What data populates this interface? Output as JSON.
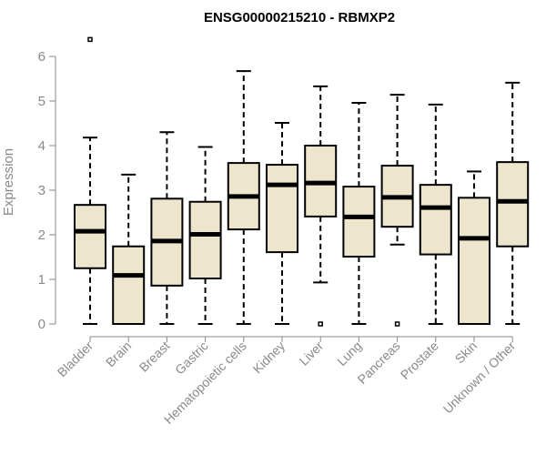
{
  "chart_data": {
    "type": "boxplot",
    "title": "ENSG00000215210 - RBMXP2",
    "xlabel": "",
    "ylabel": "Expression",
    "ylim": [
      0,
      6
    ],
    "yticks": [
      0,
      1,
      2,
      3,
      4,
      5,
      6
    ],
    "colors": {
      "box_fill": "#ede6cc",
      "stroke": "#000000",
      "axis": "#8a8a8a",
      "title": "#000000"
    },
    "categories": [
      "Bladder",
      "Brain",
      "Breast",
      "Gastric",
      "Hematopoietic cells",
      "Kidney",
      "Liver",
      "Lung",
      "Pancreas",
      "Prostate",
      "Skin",
      "Unknown / Other"
    ],
    "series": [
      {
        "name": "Bladder",
        "whisker_low": 0.0,
        "q1": 1.25,
        "median": 2.08,
        "q3": 2.67,
        "whisker_high": 4.18,
        "outliers": [
          6.38
        ]
      },
      {
        "name": "Brain",
        "whisker_low": 0.0,
        "q1": 0.0,
        "median": 1.09,
        "q3": 1.74,
        "whisker_high": 3.35,
        "outliers": []
      },
      {
        "name": "Breast",
        "whisker_low": 0.0,
        "q1": 0.86,
        "median": 1.86,
        "q3": 2.81,
        "whisker_high": 4.3,
        "outliers": []
      },
      {
        "name": "Gastric",
        "whisker_low": 0.0,
        "q1": 1.02,
        "median": 2.01,
        "q3": 2.74,
        "whisker_high": 3.97,
        "outliers": []
      },
      {
        "name": "Hematopoietic cells",
        "whisker_low": 0.0,
        "q1": 2.12,
        "median": 2.86,
        "q3": 3.61,
        "whisker_high": 5.67,
        "outliers": []
      },
      {
        "name": "Kidney",
        "whisker_low": 0.0,
        "q1": 1.61,
        "median": 3.12,
        "q3": 3.57,
        "whisker_high": 4.51,
        "outliers": []
      },
      {
        "name": "Liver",
        "whisker_low": 0.93,
        "q1": 2.41,
        "median": 3.16,
        "q3": 4.0,
        "whisker_high": 5.33,
        "outliers": [
          0.0
        ]
      },
      {
        "name": "Lung",
        "whisker_low": 0.0,
        "q1": 1.51,
        "median": 2.4,
        "q3": 3.08,
        "whisker_high": 4.96,
        "outliers": []
      },
      {
        "name": "Pancreas",
        "whisker_low": 1.78,
        "q1": 2.18,
        "median": 2.84,
        "q3": 3.55,
        "whisker_high": 5.14,
        "outliers": [
          0.0
        ]
      },
      {
        "name": "Prostate",
        "whisker_low": 0.0,
        "q1": 1.56,
        "median": 2.61,
        "q3": 3.12,
        "whisker_high": 4.92,
        "outliers": []
      },
      {
        "name": "Skin",
        "whisker_low": 0.0,
        "q1": 0.0,
        "median": 1.92,
        "q3": 2.83,
        "whisker_high": 3.42,
        "outliers": []
      },
      {
        "name": "Unknown / Other",
        "whisker_low": 0.0,
        "q1": 1.74,
        "median": 2.75,
        "q3": 3.63,
        "whisker_high": 5.41,
        "outliers": []
      }
    ]
  }
}
